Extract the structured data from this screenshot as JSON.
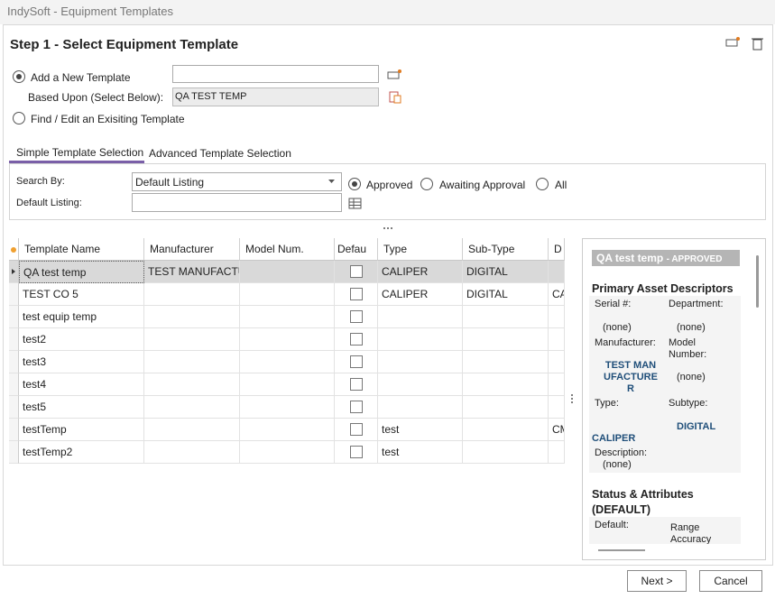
{
  "window": {
    "title": "IndySoft - Equipment Templates"
  },
  "header": {
    "title": "Step 1 - Select Equipment Template"
  },
  "options": {
    "add_new": "Add a New Template",
    "based_upon_label": "Based Upon (Select Below):",
    "based_upon_value": "QA TEST TEMP",
    "find_edit": "Find / Edit an Exisiting Template"
  },
  "tabs": [
    "Simple Template Selection",
    "Advanced Template Selection"
  ],
  "search": {
    "search_by_label": "Search By:",
    "search_by_value": "Default Listing",
    "filters": [
      "Approved",
      "Awaiting Approval",
      "All"
    ],
    "default_listing_label": "Default Listing:"
  },
  "table": {
    "columns": [
      "Template Name",
      "Manufacturer",
      "Model Num.",
      "Defau",
      "Type",
      "Sub-Type",
      "D"
    ],
    "rows": [
      [
        "QA test temp",
        "TEST MANUFACTUR",
        null,
        null,
        "CALIPER",
        "DIGITAL",
        null
      ],
      [
        "TEST CO 5",
        null,
        null,
        null,
        "CALIPER",
        "DIGITAL",
        "CA"
      ],
      [
        "test equip temp",
        null,
        null,
        null,
        null,
        null,
        null
      ],
      [
        "test2",
        null,
        null,
        null,
        null,
        null,
        null
      ],
      [
        "test3",
        null,
        null,
        null,
        null,
        null,
        null
      ],
      [
        "test4",
        null,
        null,
        null,
        null,
        null,
        null
      ],
      [
        "test5",
        null,
        null,
        null,
        null,
        null,
        null
      ],
      [
        "testTemp",
        null,
        null,
        null,
        "test",
        null,
        "CM"
      ],
      [
        "testTemp2",
        null,
        null,
        null,
        "test",
        null,
        null
      ]
    ]
  },
  "details": {
    "title": "QA test temp",
    "status": "- APPROVED",
    "primary_heading": "Primary Asset Descriptors",
    "fields": [
      {
        "label": "Serial #:",
        "value": "(none)"
      },
      {
        "label": "Department:",
        "value": "(none)"
      },
      {
        "label": "Manufacturer:",
        "value": "TEST MANUFACTURER"
      },
      {
        "label": "Model Number:",
        "value": "(none)"
      },
      {
        "label": "Type:",
        "value": "CALIPER"
      },
      {
        "label": "Subtype:",
        "value": "DIGITAL"
      },
      {
        "label": "Description:",
        "value": "(none)"
      }
    ],
    "status_heading": "Status & Attributes (DEFAULT)",
    "status_fields": [
      "Default:",
      "Range Accuracy"
    ]
  },
  "buttons": [
    "Next >",
    "Cancel"
  ]
}
